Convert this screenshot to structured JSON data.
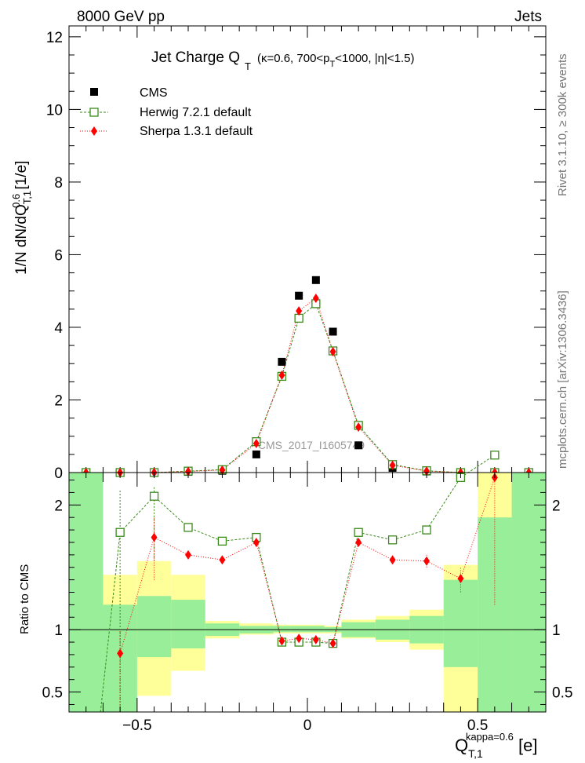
{
  "header": {
    "energy_label": "8000 GeV pp",
    "category_label": "Jets"
  },
  "title": {
    "main": "Jet Charge Q",
    "main_sub": "T",
    "kinematics_prefix": "(κ=0.6, 700<p",
    "kinematics_sub": "T",
    "kinematics_suffix": "<1000, |η|<1.5)"
  },
  "side_labels": {
    "rivet": "Rivet 3.1.10, ≥ 300k events",
    "mcplots": "mcplots.cern.ch [arXiv:1306.3436]"
  },
  "watermark": "CMS_2017_I1605749",
  "legend": {
    "cms": "CMS",
    "herwig": "Herwig 7.2.1 default",
    "sherpa": "Sherpa 1.3.1 default"
  },
  "axes": {
    "ylabel_main": "1/N dN/dQ",
    "ylabel_main_sub": "T,1",
    "ylabel_main_sup": "0.6",
    "ylabel_main_unit": " [1/e]",
    "ylabel_ratio": "Ratio to CMS",
    "xlabel": "Q",
    "xlabel_sub": "T,1",
    "xlabel_sup": "kappa=0.6",
    "xlabel_unit": " [e]"
  },
  "colors": {
    "cms": "#000000",
    "herwig": "#3a8a1a",
    "sherpa": "#ff0000",
    "band_inner": "#99ee99",
    "band_outer": "#ffff99"
  },
  "chart_data": [
    {
      "type": "scatter",
      "panel": "main",
      "xlim": [
        -0.7,
        0.7
      ],
      "ylim": [
        0,
        12.3
      ],
      "yticks": [
        0,
        2,
        4,
        6,
        8,
        10,
        12
      ],
      "x": [
        -0.65,
        -0.55,
        -0.45,
        -0.35,
        -0.25,
        -0.15,
        -0.075,
        -0.025,
        0.025,
        0.075,
        0.15,
        0.25,
        0.35,
        0.45,
        0.55,
        0.65
      ],
      "series": [
        {
          "name": "CMS",
          "values": [
            0.0,
            0.0,
            0.0,
            0.02,
            0.05,
            0.5,
            3.05,
            4.87,
            5.3,
            3.88,
            0.75,
            0.13,
            0.03,
            0.0,
            0.0,
            0.0
          ]
        },
        {
          "name": "Herwig 7.2.1 default",
          "values": [
            0.0,
            0.0,
            0.0,
            0.04,
            0.08,
            0.85,
            2.65,
            4.25,
            4.65,
            3.35,
            1.3,
            0.22,
            0.05,
            0.0,
            0.0,
            0.0
          ]
        },
        {
          "name": "Sherpa 1.3.1 default",
          "values": [
            0.0,
            0.0,
            0.0,
            0.03,
            0.07,
            0.8,
            2.68,
            4.45,
            4.8,
            3.33,
            1.25,
            0.2,
            0.04,
            0.0,
            0.0,
            0.0
          ]
        }
      ]
    },
    {
      "type": "line",
      "panel": "ratio",
      "ylabel": "Ratio to CMS",
      "xlim": [
        -0.7,
        0.7
      ],
      "ylim": [
        0.34,
        2.26
      ],
      "yticks": [
        0.5,
        1,
        2
      ],
      "xticks": [
        -0.5,
        0,
        0.5
      ],
      "x": [
        -0.55,
        -0.45,
        -0.35,
        -0.25,
        -0.15,
        -0.075,
        -0.025,
        0.025,
        0.075,
        0.15,
        0.25,
        0.35,
        0.45,
        0.55
      ],
      "series": [
        {
          "name": "Herwig 7.2.1 default",
          "values": [
            1.78,
            2.07,
            1.82,
            1.71,
            1.74,
            0.9,
            0.9,
            0.9,
            0.89,
            1.78,
            1.72,
            1.8,
            2.22,
            2.4
          ]
        },
        {
          "name": "Sherpa 1.3.1 default",
          "values": [
            0.81,
            1.74,
            1.6,
            1.56,
            1.7,
            0.91,
            0.93,
            0.92,
            0.89,
            1.7,
            1.56,
            1.55,
            1.41,
            2.22
          ]
        }
      ],
      "bands": {
        "x_edges": [
          -0.7,
          -0.6,
          -0.5,
          -0.4,
          -0.3,
          -0.2,
          -0.1,
          -0.05,
          0.0,
          0.05,
          0.1,
          0.2,
          0.3,
          0.4,
          0.5,
          0.6,
          0.7
        ],
        "inner_low": [
          0.34,
          0.34,
          0.78,
          0.85,
          0.95,
          0.97,
          0.98,
          0.98,
          0.98,
          0.98,
          0.94,
          0.92,
          0.89,
          0.7,
          0.34,
          0.34
        ],
        "inner_high": [
          2.26,
          1.2,
          1.27,
          1.24,
          1.05,
          1.03,
          1.03,
          1.03,
          1.03,
          1.02,
          1.06,
          1.08,
          1.11,
          1.4,
          1.9,
          2.26
        ],
        "outer_low": [
          0.34,
          0.85,
          0.47,
          0.67,
          0.93,
          0.96,
          0.97,
          0.97,
          0.97,
          0.97,
          0.93,
          0.9,
          0.84,
          0.34,
          0.34,
          0.34
        ],
        "outer_high": [
          2.26,
          1.44,
          1.55,
          1.44,
          1.07,
          1.05,
          1.04,
          1.04,
          1.04,
          1.03,
          1.08,
          1.11,
          1.16,
          1.52,
          2.26,
          2.26
        ]
      }
    }
  ]
}
